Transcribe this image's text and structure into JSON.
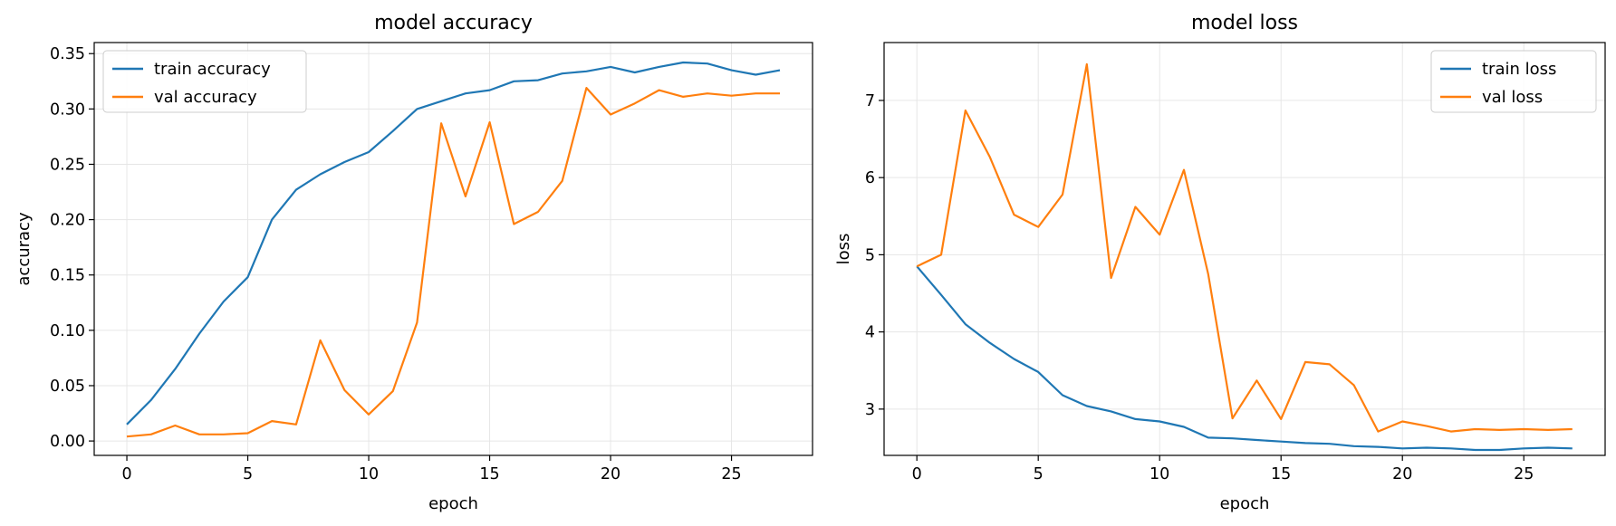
{
  "colors": {
    "train": "#1f77b4",
    "val": "#ff7f0e",
    "grid": "#e6e6e6",
    "axes": "#000000"
  },
  "chart_data": [
    {
      "type": "line",
      "title": "model accuracy",
      "xlabel": "epoch",
      "ylabel": "accuracy",
      "xlim": [
        -1.35,
        28.35
      ],
      "ylim": [
        -0.013,
        0.36
      ],
      "xticks": [
        0,
        5,
        10,
        15,
        20,
        25
      ],
      "xtick_labels": [
        "0",
        "5",
        "10",
        "15",
        "20",
        "25"
      ],
      "yticks": [
        0.0,
        0.05,
        0.1,
        0.15,
        0.2,
        0.25,
        0.3,
        0.35
      ],
      "ytick_labels": [
        "0.00",
        "0.05",
        "0.10",
        "0.15",
        "0.20",
        "0.25",
        "0.30",
        "0.35"
      ],
      "grid": true,
      "legend_position": "upper-left",
      "x": [
        0,
        1,
        2,
        3,
        4,
        5,
        6,
        7,
        8,
        9,
        10,
        11,
        12,
        13,
        14,
        15,
        16,
        17,
        18,
        19,
        20,
        21,
        22,
        23,
        24,
        25,
        26,
        27
      ],
      "series": [
        {
          "name": "train accuracy",
          "color_key": "train",
          "values": [
            0.015,
            0.037,
            0.065,
            0.097,
            0.126,
            0.148,
            0.2,
            0.227,
            0.241,
            0.252,
            0.261,
            0.28,
            0.3,
            0.307,
            0.314,
            0.317,
            0.325,
            0.326,
            0.332,
            0.334,
            0.338,
            0.333,
            0.338,
            0.342,
            0.341,
            0.335,
            0.331,
            0.335
          ]
        },
        {
          "name": "val accuracy",
          "color_key": "val",
          "values": [
            0.004,
            0.006,
            0.014,
            0.006,
            0.006,
            0.007,
            0.018,
            0.015,
            0.091,
            0.046,
            0.024,
            0.045,
            0.107,
            0.287,
            0.221,
            0.288,
            0.196,
            0.207,
            0.235,
            0.319,
            0.295,
            0.305,
            0.317,
            0.311,
            0.314,
            0.312,
            0.314,
            0.314
          ]
        }
      ]
    },
    {
      "type": "line",
      "title": "model loss",
      "xlabel": "epoch",
      "ylabel": "loss",
      "xlim": [
        -1.35,
        28.35
      ],
      "ylim": [
        2.4,
        7.75
      ],
      "xticks": [
        0,
        5,
        10,
        15,
        20,
        25
      ],
      "xtick_labels": [
        "0",
        "5",
        "10",
        "15",
        "20",
        "25"
      ],
      "yticks": [
        3,
        4,
        5,
        6,
        7
      ],
      "ytick_labels": [
        "3",
        "4",
        "5",
        "6",
        "7"
      ],
      "grid": true,
      "legend_position": "upper-right",
      "x": [
        0,
        1,
        2,
        3,
        4,
        5,
        6,
        7,
        8,
        9,
        10,
        11,
        12,
        13,
        14,
        15,
        16,
        17,
        18,
        19,
        20,
        21,
        22,
        23,
        24,
        25,
        26,
        27
      ],
      "series": [
        {
          "name": "train loss",
          "color_key": "train",
          "values": [
            4.85,
            4.48,
            4.1,
            3.86,
            3.65,
            3.48,
            3.18,
            3.04,
            2.97,
            2.87,
            2.84,
            2.77,
            2.63,
            2.62,
            2.6,
            2.58,
            2.56,
            2.55,
            2.52,
            2.51,
            2.49,
            2.5,
            2.49,
            2.47,
            2.47,
            2.49,
            2.5,
            2.49
          ]
        },
        {
          "name": "val loss",
          "color_key": "val",
          "values": [
            4.85,
            5.0,
            6.87,
            6.27,
            5.52,
            5.36,
            5.78,
            7.47,
            4.7,
            5.62,
            5.26,
            6.1,
            4.75,
            2.88,
            3.37,
            2.87,
            3.61,
            3.58,
            3.31,
            2.71,
            2.84,
            2.78,
            2.71,
            2.74,
            2.73,
            2.74,
            2.73,
            2.74
          ]
        }
      ]
    }
  ]
}
